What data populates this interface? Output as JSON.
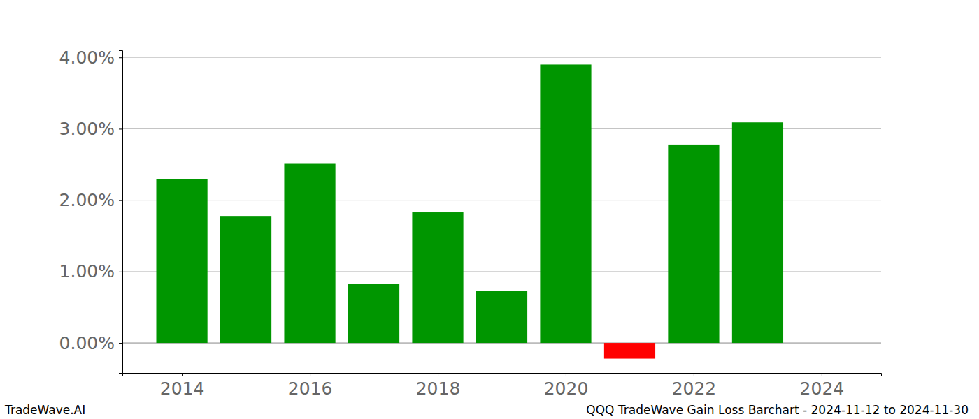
{
  "chart_data": {
    "type": "bar",
    "title": "QQQ TradeWave Gain Loss Barchart - 2024-11-12 to 2024-11-30",
    "source": "TradeWave.AI",
    "x": [
      2014,
      2015,
      2016,
      2017,
      2018,
      2019,
      2020,
      2021,
      2022,
      2023
    ],
    "values": [
      2.29,
      1.77,
      2.51,
      0.83,
      1.83,
      0.73,
      3.9,
      -0.22,
      2.78,
      3.09
    ],
    "colors": [
      "#009600",
      "#009600",
      "#009600",
      "#009600",
      "#009600",
      "#009600",
      "#009600",
      "#ff0000",
      "#009600",
      "#009600"
    ],
    "xlim": [
      2013.07,
      2024.93
    ],
    "xticks": [
      2014,
      2016,
      2018,
      2020,
      2022,
      2024
    ],
    "ylim": [
      -0.42,
      4.1
    ],
    "yticks": [
      {
        "value": 0,
        "label": "0.00%"
      },
      {
        "value": 1,
        "label": "1.00%"
      },
      {
        "value": 2,
        "label": "2.00%"
      },
      {
        "value": 3,
        "label": "3.00%"
      },
      {
        "value": 4,
        "label": "4.00%"
      }
    ],
    "grid": true
  }
}
